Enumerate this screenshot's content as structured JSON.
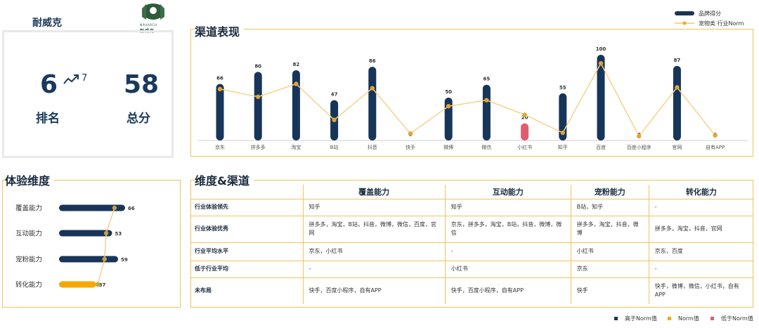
{
  "brand": {
    "name": "耐威克",
    "logo_text": "NAVARCH",
    "logo_cn": "耐威克"
  },
  "score": {
    "rank": "6",
    "prev_rank": "7",
    "rank_label": "排名",
    "total": "58",
    "total_label": "总分"
  },
  "sections": {
    "channel": "渠道表现",
    "dimension": "体验维度",
    "matrix": "维度&渠道"
  },
  "legend": {
    "brand_score": "品牌得分",
    "norm": "宠物类 行业Norm"
  },
  "colors": {
    "navy": "#173559",
    "gold": "#f5a800",
    "red": "#e05d6f",
    "line": "#f7d28a"
  },
  "chart_data": {
    "type": "bar",
    "categories": [
      "京东",
      "拼多多",
      "淘宝",
      "B站",
      "抖音",
      "快手",
      "微博",
      "微信",
      "小红书",
      "知乎",
      "百度",
      "百度小程序",
      "官网",
      "自有APP"
    ],
    "series": [
      {
        "name": "品牌得分",
        "values": [
          66,
          80,
          82,
          47,
          86,
          0,
          50,
          65,
          20,
          55,
          100,
          0,
          87,
          0
        ]
      },
      {
        "name": "宠物类 行业Norm",
        "values": [
          60,
          51,
          66,
          24,
          61,
          8,
          40,
          47,
          30,
          9,
          90,
          5,
          62,
          6
        ]
      }
    ],
    "point_status": [
      "high",
      "high",
      "high",
      "high",
      "high",
      "norm",
      "high",
      "high",
      "low",
      "high",
      "high",
      "norm",
      "high",
      "norm"
    ],
    "data_labels": [
      "66",
      "80",
      "82",
      "47",
      "86",
      "0",
      "50",
      "65",
      "20",
      "55",
      "100",
      "0",
      "87",
      "0"
    ],
    "ylim": [
      0,
      105
    ]
  },
  "dimension_chart": {
    "categories": [
      "覆盖能力",
      "互动能力",
      "宠粉能力",
      "转化能力"
    ],
    "values": [
      66,
      53,
      59,
      37
    ],
    "norms": [
      60,
      50,
      48,
      40
    ],
    "status": [
      "high",
      "high",
      "high",
      "low"
    ],
    "data_labels": [
      "66",
      "53",
      "59",
      "37"
    ],
    "xlim": [
      0,
      72
    ]
  },
  "matrix": {
    "columns": [
      "覆盖能力",
      "互动能力",
      "宠粉能力",
      "转化能力"
    ],
    "rows": [
      {
        "label": "行业体验领先",
        "cells": [
          "知乎",
          "知乎",
          "B站，知乎",
          "-"
        ]
      },
      {
        "label": "行业体验优秀",
        "cells": [
          "拼多多，淘宝，B站，抖音，微博，微信，百度，官网",
          "京东，拼多多，淘宝，B站，抖音，微博，微信",
          "拼多多，淘宝，抖音，微博",
          "拼多多，淘宝，抖音，官网"
        ]
      },
      {
        "label": "行业平均水平",
        "cells": [
          "京东，小红书",
          "-",
          "小红书",
          "京东，百度"
        ]
      },
      {
        "label": "低于行业平均",
        "cells": [
          "-",
          "小红书",
          "京东",
          "-"
        ]
      },
      {
        "label": "未布局",
        "cells": [
          "快手，百度小程序，自有APP",
          "快手，百度小程序，自有APP",
          "快手",
          "快手，微博，微信，小红书，自有APP"
        ]
      }
    ]
  },
  "bottom_legend": {
    "high": "高于Norm值",
    "norm": "Norm值",
    "low": "低于Norm值"
  }
}
